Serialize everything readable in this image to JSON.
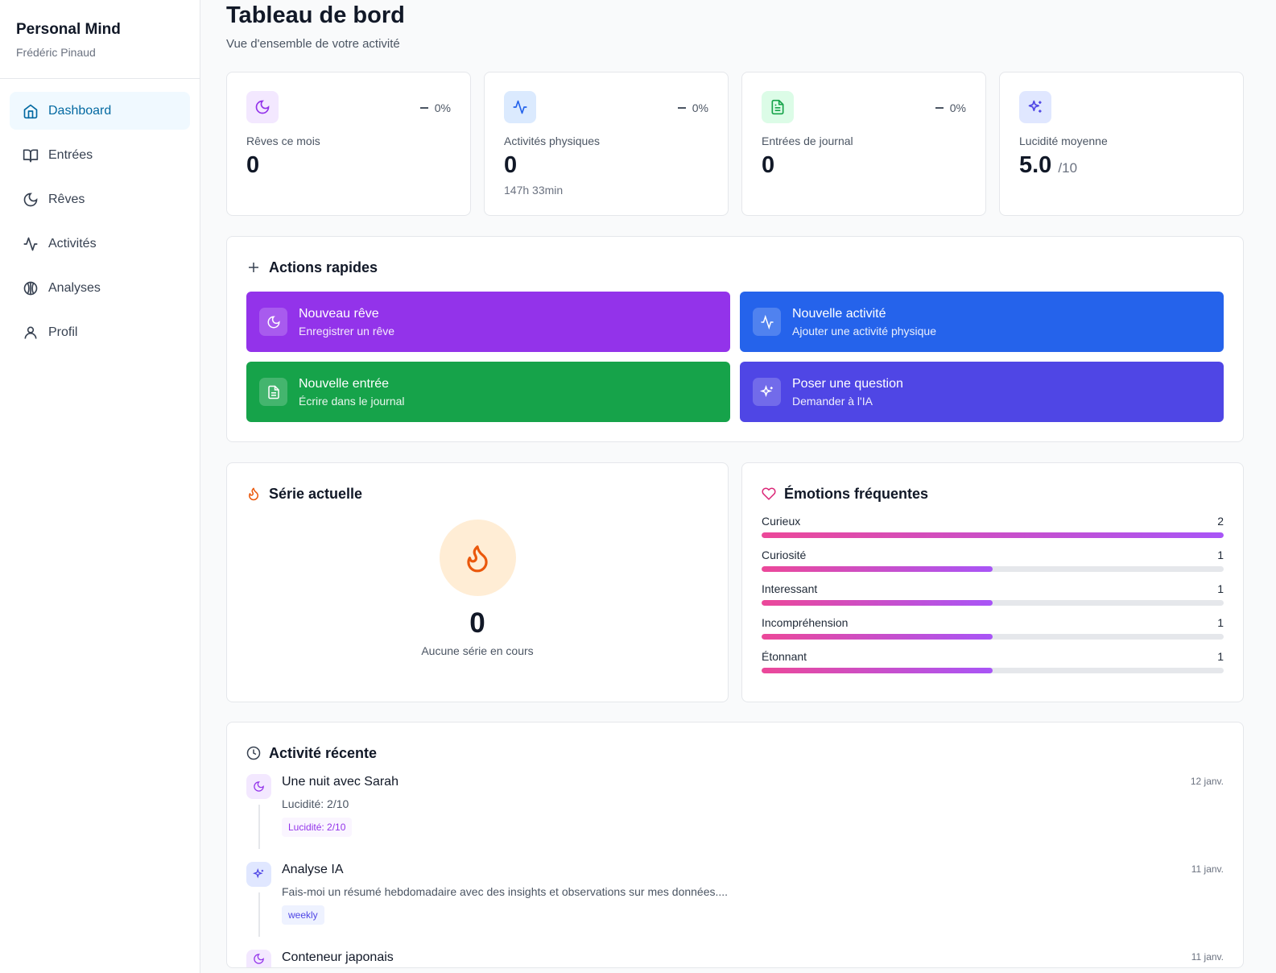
{
  "app": {
    "name": "Personal Mind",
    "user": "Frédéric Pinaud"
  },
  "nav": [
    {
      "label": "Dashboard",
      "icon": "home-icon"
    },
    {
      "label": "Entrées",
      "icon": "book-icon"
    },
    {
      "label": "Rêves",
      "icon": "moon-icon"
    },
    {
      "label": "Activités",
      "icon": "activity-icon"
    },
    {
      "label": "Analyses",
      "icon": "brain-icon"
    },
    {
      "label": "Profil",
      "icon": "user-icon"
    }
  ],
  "header": {
    "title": "Tableau de bord",
    "subtitle": "Vue d'ensemble de votre activité"
  },
  "stats": [
    {
      "label": "Rêves ce mois",
      "value": "0",
      "trend": "0%",
      "color": "#9333ea"
    },
    {
      "label": "Activités physiques",
      "value": "0",
      "trend": "0%",
      "sub": "147h 33min",
      "color": "#2563eb"
    },
    {
      "label": "Entrées de journal",
      "value": "0",
      "trend": "0%",
      "color": "#16a34a"
    },
    {
      "label": "Lucidité moyenne",
      "value": "5.0",
      "suffix": "/10",
      "color": "#4f46e5"
    }
  ],
  "quick": {
    "title": "Actions rapides",
    "actions": [
      {
        "title": "Nouveau rêve",
        "sub": "Enregistrer un rêve",
        "color": "#9333ea"
      },
      {
        "title": "Nouvelle activité",
        "sub": "Ajouter une activité physique",
        "color": "#2563eb"
      },
      {
        "title": "Nouvelle entrée",
        "sub": "Écrire dans le journal",
        "color": "#16a34a"
      },
      {
        "title": "Poser une question",
        "sub": "Demander à l'IA",
        "color": "#4f46e5"
      }
    ]
  },
  "streak": {
    "title": "Série actuelle",
    "value": "0",
    "text": "Aucune série en cours"
  },
  "emotions": {
    "title": "Émotions fréquentes",
    "items": [
      {
        "name": "Curieux",
        "count": "2",
        "fraction": 1.0
      },
      {
        "name": "Curiosité",
        "count": "1",
        "fraction": 0.5
      },
      {
        "name": "Interessant",
        "count": "1",
        "fraction": 0.5
      },
      {
        "name": "Incompréhension",
        "count": "1",
        "fraction": 0.5
      },
      {
        "name": "Étonnant",
        "count": "1",
        "fraction": 0.5
      }
    ]
  },
  "recent": {
    "title": "Activité récente",
    "items": [
      {
        "title": "Une nuit avec Sarah",
        "desc": "Lucidité: 2/10",
        "tag": "Lucidité: 2/10",
        "date": "12 janv."
      },
      {
        "title": "Analyse IA",
        "desc": "Fais-moi un résumé hebdomadaire avec des insights et observations sur mes données....",
        "tag": "weekly",
        "date": "11 janv."
      },
      {
        "title": "Conteneur japonais",
        "date": "11 janv."
      }
    ]
  }
}
